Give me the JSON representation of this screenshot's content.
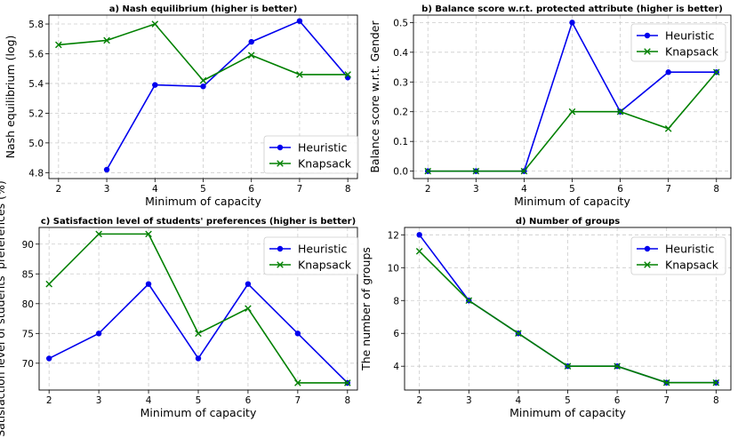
{
  "chart_data": [
    {
      "type": "line",
      "title": "a) Nash equilibrium (higher is better)",
      "xlabel": "Minimum of capacity",
      "ylabel": "Nash equilibrium (log)",
      "x": [
        2,
        3,
        4,
        5,
        6,
        7,
        8
      ],
      "xlim": [
        1.8,
        8.2
      ],
      "ylim": [
        4.76,
        5.86
      ],
      "yticks": [
        4.8,
        5.0,
        5.2,
        5.4,
        5.6,
        5.8
      ],
      "ytick_labels": [
        "4.8",
        "5.0",
        "5.2",
        "5.4",
        "5.6",
        "5.8"
      ],
      "grid": true,
      "legend": "lower-right",
      "series": [
        {
          "name": "Heuristic",
          "color": "#0000ee",
          "marker": "circle",
          "values": [
            null,
            4.82,
            5.39,
            5.38,
            5.68,
            5.82,
            5.44
          ]
        },
        {
          "name": "Knapsack",
          "color": "#008000",
          "marker": "x",
          "values": [
            5.66,
            5.69,
            5.8,
            5.42,
            5.59,
            5.46,
            5.46
          ]
        }
      ]
    },
    {
      "type": "line",
      "title": "b) Balance score w.r.t. protected attribute (higher is better)",
      "xlabel": "Minimum of capacity",
      "ylabel": "Balance score w.r.t. Gender",
      "x": [
        2,
        3,
        4,
        5,
        6,
        7,
        8
      ],
      "xlim": [
        1.7,
        8.3
      ],
      "ylim": [
        -0.025,
        0.525
      ],
      "yticks": [
        0.0,
        0.1,
        0.2,
        0.3,
        0.4,
        0.5
      ],
      "ytick_labels": [
        "0.0",
        "0.1",
        "0.2",
        "0.3",
        "0.4",
        "0.5"
      ],
      "grid": true,
      "legend": "top-right",
      "series": [
        {
          "name": "Heuristic",
          "color": "#0000ee",
          "marker": "circle",
          "values": [
            0.0,
            0.0,
            0.0,
            0.5,
            0.2,
            0.333,
            0.333
          ]
        },
        {
          "name": "Knapsack",
          "color": "#008000",
          "marker": "x",
          "values": [
            0.0,
            0.0,
            0.0,
            0.2,
            0.2,
            0.143,
            0.333
          ]
        }
      ]
    },
    {
      "type": "line",
      "title": "c) Satisfaction level of students' preferences (higher is better)",
      "xlabel": "Minimum of capacity",
      "ylabel": "Satisfaction level of students' preferences (%)",
      "x": [
        2,
        3,
        4,
        5,
        6,
        7,
        8
      ],
      "xlim": [
        1.8,
        8.2
      ],
      "ylim": [
        65.5,
        92.8
      ],
      "yticks": [
        70,
        75,
        80,
        85,
        90
      ],
      "ytick_labels": [
        "70",
        "75",
        "80",
        "85",
        "90"
      ],
      "grid": true,
      "legend": "top-right",
      "series": [
        {
          "name": "Heuristic",
          "color": "#0000ee",
          "marker": "circle",
          "values": [
            70.8,
            75.0,
            83.3,
            70.8,
            83.3,
            75.0,
            66.7
          ]
        },
        {
          "name": "Knapsack",
          "color": "#008000",
          "marker": "x",
          "values": [
            83.3,
            91.7,
            91.7,
            75.0,
            79.2,
            66.7,
            66.7
          ]
        }
      ]
    },
    {
      "type": "line",
      "title": "d) Number of groups",
      "xlabel": "Minimum of capacity",
      "ylabel": "The number of groups",
      "x": [
        2,
        3,
        4,
        5,
        6,
        7,
        8
      ],
      "xlim": [
        1.7,
        8.3
      ],
      "ylim": [
        2.55,
        12.45
      ],
      "yticks": [
        4,
        6,
        8,
        10,
        12
      ],
      "ytick_labels": [
        "4",
        "6",
        "8",
        "10",
        "12"
      ],
      "grid": true,
      "legend": "top-right",
      "series": [
        {
          "name": "Heuristic",
          "color": "#0000ee",
          "marker": "circle",
          "values": [
            12,
            8,
            6,
            4,
            4,
            3,
            3
          ]
        },
        {
          "name": "Knapsack",
          "color": "#008000",
          "marker": "x",
          "values": [
            11,
            8,
            6,
            4,
            4,
            3,
            3
          ]
        }
      ]
    }
  ]
}
